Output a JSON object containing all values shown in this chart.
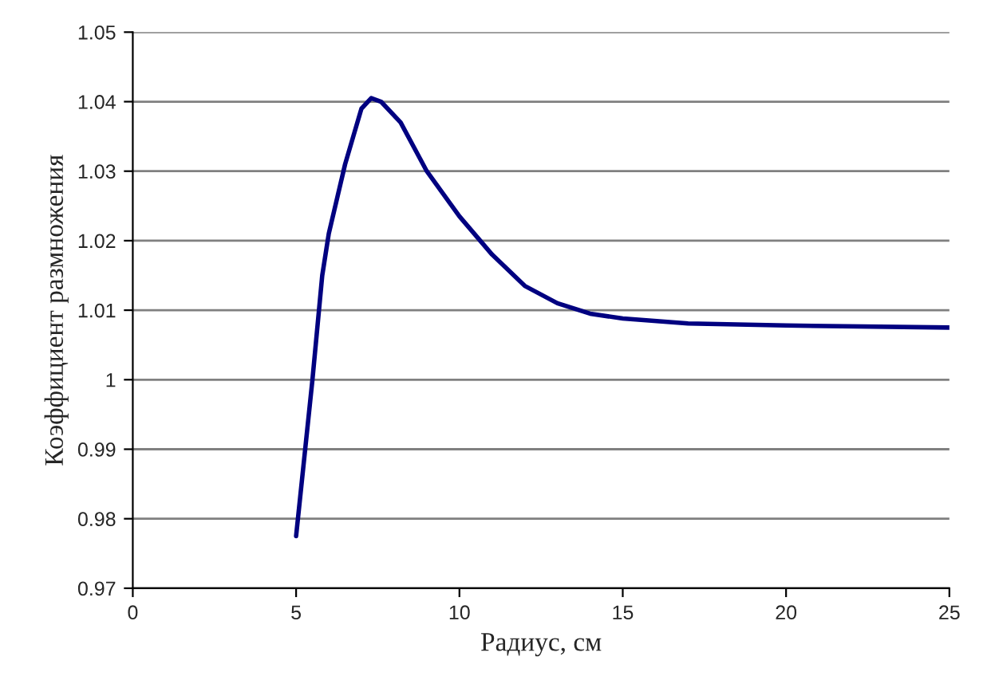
{
  "chart_data": {
    "type": "line",
    "xlabel": "Радиус, см",
    "ylabel": "Коэффициент размножения",
    "x": [
      5,
      5.5,
      5.8,
      6,
      6.5,
      7,
      7.3,
      7.6,
      8.2,
      9,
      10,
      11,
      12,
      13,
      14,
      15,
      17,
      20,
      25
    ],
    "series": [
      {
        "color": "#000080",
        "values": [
          0.9775,
          1.0,
          1.015,
          1.021,
          1.031,
          1.039,
          1.0405,
          1.04,
          1.037,
          1.03,
          1.0235,
          1.018,
          1.0135,
          1.011,
          1.0095,
          1.0088,
          1.0081,
          1.0078,
          1.0075
        ]
      }
    ],
    "xlim": [
      0,
      25
    ],
    "xticks": [
      0,
      5,
      10,
      15,
      20,
      25
    ],
    "ylim": [
      0.97,
      1.05
    ],
    "yticks": [
      {
        "value": 0.97,
        "label": "0.97"
      },
      {
        "value": 0.98,
        "label": "0.98"
      },
      {
        "value": 0.99,
        "label": "0.99"
      },
      1,
      {
        "value": 1.01,
        "label": "1.01"
      },
      {
        "value": 1.02,
        "label": "1.02"
      },
      {
        "value": 1.03,
        "label": "1.03"
      },
      {
        "value": 1.04,
        "label": "1.04"
      },
      {
        "value": 1.05,
        "label": "1.05"
      }
    ],
    "grid": "y",
    "marker": "none",
    "line_style": "solid",
    "legend": false
  }
}
